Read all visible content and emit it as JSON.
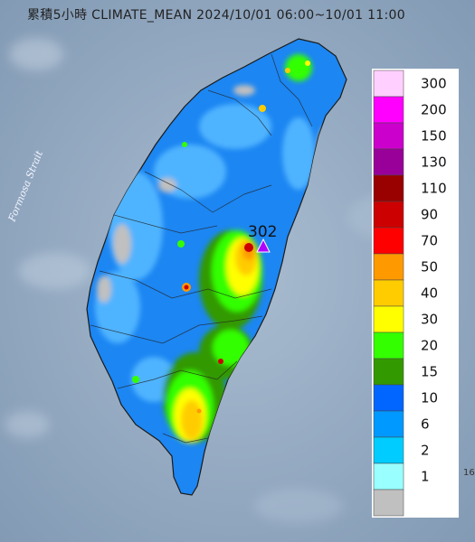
{
  "title": "累積5小時 CLIMATE_MEAN 2024/10/01 06:00~10/01 11:00",
  "strait_label": "Formosa Strait",
  "peak": {
    "value": "302",
    "marker": "triangle-marker"
  },
  "corner_text": "16",
  "legend": [
    {
      "label": "300",
      "color": "#ffd0ff"
    },
    {
      "label": "200",
      "color": "#ff00ff"
    },
    {
      "label": "150",
      "color": "#cc00cc"
    },
    {
      "label": "130",
      "color": "#990099"
    },
    {
      "label": "110",
      "color": "#990000"
    },
    {
      "label": "90",
      "color": "#cc0000"
    },
    {
      "label": "70",
      "color": "#ff0000"
    },
    {
      "label": "50",
      "color": "#ff9900"
    },
    {
      "label": "40",
      "color": "#ffcc00"
    },
    {
      "label": "30",
      "color": "#ffff00"
    },
    {
      "label": "20",
      "color": "#33ff00"
    },
    {
      "label": "15",
      "color": "#339900"
    },
    {
      "label": "10",
      "color": "#0066ff"
    },
    {
      "label": "6",
      "color": "#0099ff"
    },
    {
      "label": "2",
      "color": "#00ccff"
    },
    {
      "label": "1",
      "color": "#99ffff"
    },
    {
      "label": "",
      "color": "#c0c0c0"
    }
  ]
}
